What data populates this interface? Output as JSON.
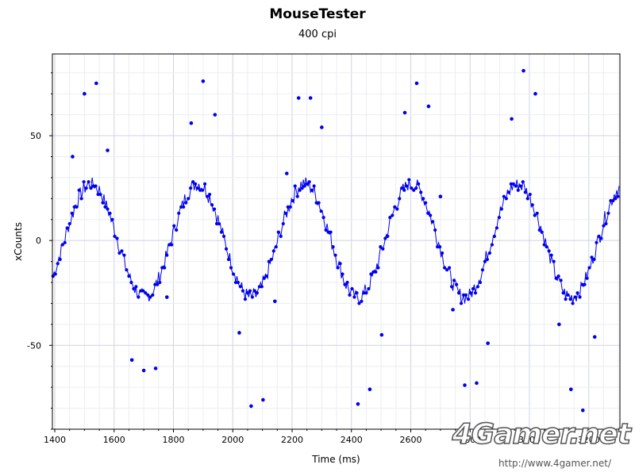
{
  "header": {
    "title": "MouseTester",
    "subtitle": "400 cpi"
  },
  "watermark": {
    "logo": "4Gamer.net",
    "url": "http://www.4gamer.net/"
  },
  "colors": {
    "series": "#0000ee",
    "grid_major": "#cfd3e3",
    "grid_minor": "#ebedf4",
    "axes": "#000000"
  },
  "chart_data": {
    "type": "scatter",
    "title": "MouseTester",
    "subtitle": "400 cpi",
    "xlabel": "Time (ms)",
    "ylabel": "xCounts",
    "xlim": [
      1392,
      3305
    ],
    "ylim": [
      -90,
      89
    ],
    "x_ticks": [
      1400,
      1600,
      1800,
      2000,
      2200,
      2400,
      2600,
      2800,
      3000,
      3200
    ],
    "y_ticks": [
      50,
      0,
      -50
    ],
    "x_tick_labels": [
      "1400",
      "1600",
      "1800",
      "2000",
      "2200",
      "2400",
      "2600",
      "2800",
      "3000",
      "3200"
    ],
    "y_tick_labels": [
      "50",
      "0",
      "-50"
    ],
    "grid": true,
    "legend": "none",
    "series": [
      {
        "kind": "points+line",
        "trend": {
          "description_values": "sinusoidal oscillation of xCounts over time",
          "amplitude": 27,
          "period_ms": 360,
          "phase_zero_crossing_up_ms": 1432,
          "sample_interval_ms": 4
        },
        "outliers": [
          {
            "x": 1460,
            "y": 40
          },
          {
            "x": 1500,
            "y": 70
          },
          {
            "x": 1540,
            "y": 75
          },
          {
            "x": 1578,
            "y": 43
          },
          {
            "x": 1660,
            "y": -57
          },
          {
            "x": 1700,
            "y": -62
          },
          {
            "x": 1740,
            "y": -61
          },
          {
            "x": 1778,
            "y": -27
          },
          {
            "x": 1860,
            "y": 56
          },
          {
            "x": 1900,
            "y": 76
          },
          {
            "x": 1940,
            "y": 60
          },
          {
            "x": 2022,
            "y": -44
          },
          {
            "x": 2062,
            "y": -79
          },
          {
            "x": 2102,
            "y": -76
          },
          {
            "x": 2142,
            "y": -29
          },
          {
            "x": 2182,
            "y": 32
          },
          {
            "x": 2222,
            "y": 68
          },
          {
            "x": 2262,
            "y": 68
          },
          {
            "x": 2300,
            "y": 54
          },
          {
            "x": 2422,
            "y": -78
          },
          {
            "x": 2462,
            "y": -71
          },
          {
            "x": 2502,
            "y": -45
          },
          {
            "x": 2580,
            "y": 61
          },
          {
            "x": 2620,
            "y": 75
          },
          {
            "x": 2660,
            "y": 64
          },
          {
            "x": 2700,
            "y": 21
          },
          {
            "x": 2742,
            "y": -33
          },
          {
            "x": 2782,
            "y": -69
          },
          {
            "x": 2822,
            "y": -68
          },
          {
            "x": 2860,
            "y": -49
          },
          {
            "x": 2940,
            "y": 58
          },
          {
            "x": 2980,
            "y": 81
          },
          {
            "x": 3020,
            "y": 70
          },
          {
            "x": 3100,
            "y": -40
          },
          {
            "x": 3140,
            "y": -71
          },
          {
            "x": 3180,
            "y": -81
          },
          {
            "x": 3220,
            "y": -46
          }
        ]
      }
    ]
  }
}
